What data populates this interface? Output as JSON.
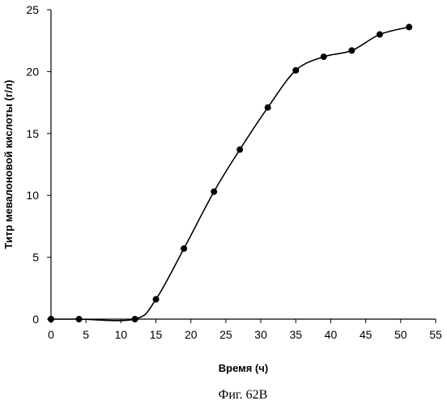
{
  "chart_data": {
    "type": "line",
    "xlabel": "Время (ч)",
    "ylabel": "Титр мевалоновой кислоты (г/л)",
    "caption": "Фиг. 62В",
    "xlim": [
      0,
      55
    ],
    "ylim": [
      0,
      25
    ],
    "x_ticks": [
      "0",
      "5",
      "10",
      "15",
      "20",
      "25",
      "30",
      "35",
      "40",
      "45",
      "50",
      "55"
    ],
    "y_ticks": [
      "0",
      "5",
      "10",
      "15",
      "20",
      "25"
    ],
    "grid": false,
    "legend": "none",
    "series": [
      {
        "x": [
          0,
          4,
          12,
          15,
          19,
          23.3,
          27,
          31,
          35,
          39,
          43,
          47,
          51.2
        ],
        "y": [
          0,
          0,
          0,
          1.6,
          5.7,
          10.3,
          13.7,
          17.1,
          20.1,
          21.2,
          21.7,
          23.0,
          23.6
        ],
        "marker": "circle",
        "smooth": true,
        "color": "#000000"
      }
    ]
  }
}
